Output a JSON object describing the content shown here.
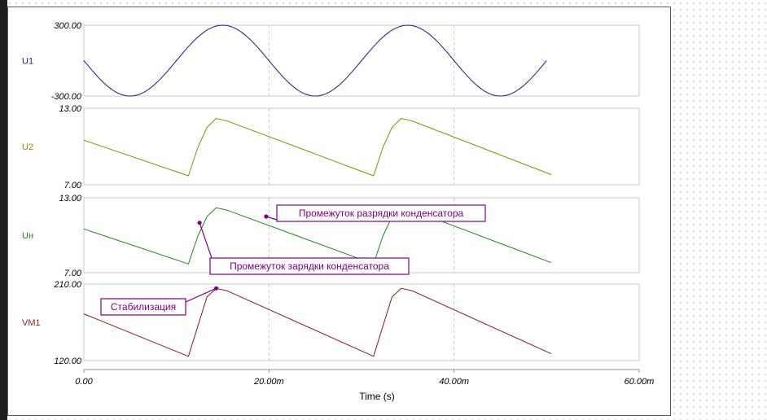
{
  "chart_data": {
    "type": "line",
    "xlabel": "Time (s)",
    "x_ticks": [
      "0.00",
      "20.00m",
      "40.00m",
      "60.00m"
    ],
    "xlim": [
      0,
      0.06
    ],
    "panels": [
      {
        "name": "U1",
        "color": "#1a1a8c",
        "ylim": [
          -300,
          300
        ],
        "ytick_top": "300.00",
        "ytick_bottom": "-300.00",
        "x": [
          0,
          0.0025,
          0.005,
          0.0075,
          0.01,
          0.0125,
          0.015,
          0.0175,
          0.02,
          0.0225,
          0.025,
          0.0275,
          0.03,
          0.0325,
          0.035,
          0.0375,
          0.04,
          0.0425,
          0.045,
          0.0475,
          0.05
        ],
        "values": [
          0,
          -212,
          -300,
          -212,
          0,
          212,
          300,
          212,
          0,
          -212,
          -300,
          -212,
          0,
          212,
          300,
          212,
          0,
          -212,
          -300,
          -212,
          0
        ]
      },
      {
        "name": "U2",
        "color": "#8c8c00",
        "ylim": [
          7,
          13
        ],
        "ytick_top": "13.00",
        "ytick_bottom": "7.00",
        "x": [
          0,
          0.0113,
          0.0123,
          0.0133,
          0.0143,
          0.0155,
          0.0313,
          0.0323,
          0.0333,
          0.0343,
          0.0355,
          0.0505
        ],
        "values": [
          10.5,
          7.7,
          9.9,
          11.5,
          12.2,
          12.0,
          7.7,
          9.9,
          11.5,
          12.2,
          12.0,
          7.8
        ]
      },
      {
        "name": "Uн",
        "color": "#1a8c1a",
        "ylim": [
          7,
          13
        ],
        "ytick_top": "13.00",
        "ytick_bottom": "7.00",
        "x": [
          0,
          0.0113,
          0.0123,
          0.0133,
          0.0143,
          0.0155,
          0.0313,
          0.0323,
          0.0333,
          0.0343,
          0.0355,
          0.0505
        ],
        "values": [
          10.5,
          7.7,
          9.9,
          11.5,
          12.2,
          12.0,
          7.7,
          9.9,
          11.5,
          12.2,
          12.0,
          7.8
        ]
      },
      {
        "name": "VM1",
        "color": "#8c1a1a",
        "ylim": [
          120,
          210
        ],
        "ytick_top": "210.00",
        "ytick_bottom": "120.00",
        "x": [
          0,
          0.0113,
          0.0123,
          0.0133,
          0.0143,
          0.0155,
          0.0313,
          0.0323,
          0.0333,
          0.0343,
          0.0355,
          0.0505
        ],
        "values": [
          175,
          125,
          160,
          195,
          205,
          202,
          125,
          160,
          195,
          205,
          202,
          128
        ]
      }
    ],
    "annotations": [
      {
        "text": "Промежуток разрядки конденсатора",
        "panel": 2,
        "target": [
          0.0197,
          11.5
        ]
      },
      {
        "text": "Промежуток зарядки конденсатора",
        "panel": 2,
        "target": [
          0.0125,
          11.0
        ]
      },
      {
        "text": "Стабилизация",
        "panel": 3,
        "target": [
          0.0143,
          205
        ]
      }
    ]
  }
}
